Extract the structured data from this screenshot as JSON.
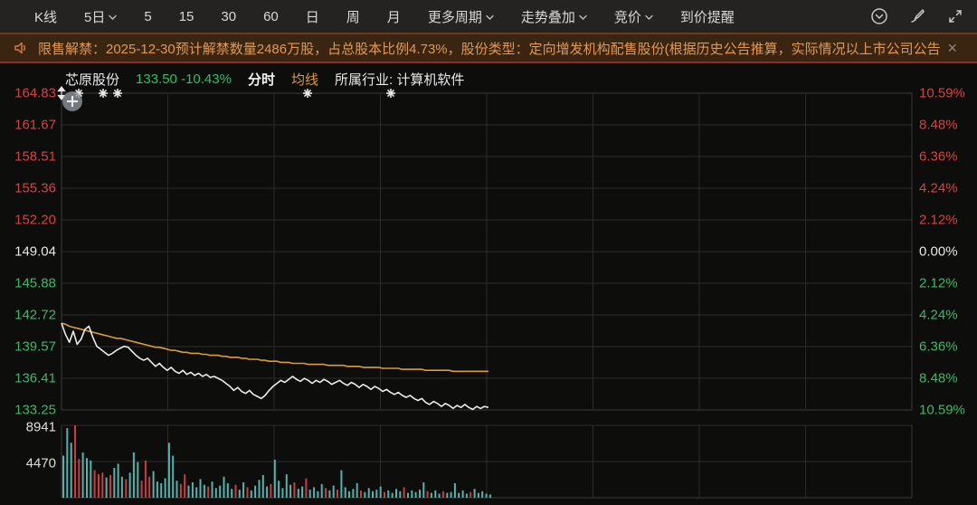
{
  "colors": {
    "up_red": "#d64141",
    "down_green": "#3cb768",
    "neutral_white": "#e6e6e6",
    "price_line": "#ebebeb",
    "ma_line": "#dd9c30",
    "vol_down_teal": "#4fb5ae",
    "vol_up_red": "#cf3b3b",
    "notice_text": "#e2994f",
    "grid": "#2c2c2c",
    "grid_border": "#3b3b3b"
  },
  "toolbar": {
    "items": [
      {
        "label": "K线",
        "caret": false
      },
      {
        "label": "5日",
        "caret": true
      },
      {
        "label": "5",
        "caret": false
      },
      {
        "label": "15",
        "caret": false
      },
      {
        "label": "30",
        "caret": false
      },
      {
        "label": "60",
        "caret": false
      },
      {
        "label": "日",
        "caret": false
      },
      {
        "label": "周",
        "caret": false
      },
      {
        "label": "月",
        "caret": false
      },
      {
        "label": "更多周期",
        "caret": true
      },
      {
        "label": "走势叠加",
        "caret": true
      },
      {
        "label": "竞价",
        "caret": true
      },
      {
        "label": "到价提醒",
        "caret": false
      }
    ],
    "right_icons": [
      "history-icon",
      "brush-icon",
      "fullscreen-icon"
    ]
  },
  "notice": {
    "icon": "speaker-icon",
    "text": "限售解禁：2025-12-30预计解禁数量2486万股，占总股本比例4.73%，股份类型：定向增发机构配售股份(根据历史公告推算，实际情况以上市公司公告...",
    "close_label": "×"
  },
  "header": {
    "stock_name": "芯原股份",
    "price": "133.50",
    "change_pct": "-10.43%",
    "view_label": "分时",
    "ma_label": "均线",
    "industry": "所属行业: 计算机软件"
  },
  "chart_data": {
    "type": "line",
    "title": "芯原股份 分时走势",
    "ylim": [
      133.25,
      164.83
    ],
    "prev_close": 149.04,
    "y_axis_price_labels": [
      "164.83",
      "161.67",
      "158.51",
      "155.36",
      "152.20",
      "149.04",
      "145.88",
      "142.72",
      "139.57",
      "136.41",
      "133.25"
    ],
    "y_axis_pct_labels": [
      "10.59%",
      "8.48%",
      "6.36%",
      "4.24%",
      "2.12%",
      "0.00%",
      "2.12%",
      "4.24%",
      "6.36%",
      "8.48%",
      "10.59%"
    ],
    "x_segments": 8,
    "x_data_fraction": 0.502,
    "legend": [
      {
        "name": "price",
        "color": "#ebebeb"
      },
      {
        "name": "avg",
        "color": "#dd9c30"
      }
    ],
    "series": [
      {
        "name": "price",
        "values": [
          141.9,
          140.8,
          140.0,
          141.1,
          139.8,
          140.3,
          141.3,
          141.6,
          140.5,
          139.6,
          139.3,
          139.0,
          138.7,
          138.9,
          139.2,
          139.4,
          139.6,
          139.5,
          139.1,
          138.7,
          138.4,
          138.2,
          138.4,
          138.0,
          137.6,
          137.9,
          137.5,
          137.2,
          137.5,
          137.1,
          136.9,
          137.2,
          136.8,
          137.0,
          136.7,
          136.9,
          136.6,
          136.8,
          136.5,
          136.6,
          136.4,
          136.2,
          135.9,
          135.6,
          135.2,
          135.5,
          135.1,
          134.9,
          135.2,
          134.8,
          134.6,
          134.4,
          134.7,
          135.2,
          135.6,
          135.9,
          136.2,
          136.0,
          136.3,
          136.6,
          136.3,
          136.1,
          136.4,
          136.2,
          135.9,
          136.2,
          136.0,
          136.3,
          136.1,
          135.8,
          136.0,
          136.2,
          135.9,
          135.7,
          136.0,
          135.8,
          135.5,
          135.8,
          135.6,
          135.3,
          135.6,
          135.4,
          135.1,
          135.3,
          135.0,
          134.8,
          135.0,
          134.7,
          134.5,
          134.7,
          134.4,
          134.2,
          134.4,
          134.0,
          133.8,
          134.1,
          133.9,
          133.6,
          133.9,
          133.7,
          133.4,
          133.7,
          133.5,
          133.8,
          133.5,
          133.3,
          133.6,
          133.4,
          133.6,
          133.5
        ]
      },
      {
        "name": "avg",
        "values": [
          141.9,
          141.8,
          141.6,
          141.5,
          141.4,
          141.3,
          141.2,
          141.1,
          141.0,
          140.9,
          140.8,
          140.7,
          140.6,
          140.5,
          140.4,
          140.4,
          140.3,
          140.2,
          140.1,
          140.0,
          139.9,
          139.8,
          139.7,
          139.6,
          139.5,
          139.5,
          139.4,
          139.3,
          139.2,
          139.2,
          139.1,
          139.0,
          139.0,
          138.9,
          138.9,
          138.9,
          138.8,
          138.8,
          138.7,
          138.7,
          138.7,
          138.6,
          138.6,
          138.5,
          138.5,
          138.5,
          138.4,
          138.4,
          138.3,
          138.3,
          138.3,
          138.2,
          138.2,
          138.1,
          138.1,
          138.1,
          138.0,
          138.0,
          138.0,
          137.9,
          137.9,
          137.9,
          137.9,
          137.8,
          137.8,
          137.8,
          137.8,
          137.8,
          137.7,
          137.7,
          137.7,
          137.7,
          137.7,
          137.6,
          137.6,
          137.6,
          137.6,
          137.5,
          137.5,
          137.5,
          137.5,
          137.5,
          137.4,
          137.4,
          137.4,
          137.4,
          137.4,
          137.3,
          137.3,
          137.3,
          137.3,
          137.3,
          137.3,
          137.2,
          137.2,
          137.2,
          137.2,
          137.2,
          137.2,
          137.2,
          137.1,
          137.1,
          137.1,
          137.1,
          137.1,
          137.1,
          137.1,
          137.1,
          137.1,
          137.1
        ]
      }
    ],
    "volume": {
      "axis_labels": [
        "8941",
        "4470"
      ],
      "max": 8941,
      "values": [
        5200,
        8600,
        6800,
        8941,
        4800,
        5600,
        4900,
        4600,
        3400,
        2900,
        3100,
        2500,
        2800,
        3700,
        4200,
        2600,
        2300,
        3100,
        5600,
        4400,
        2100,
        4600,
        2600,
        3300,
        2000,
        1800,
        2400,
        6800,
        5200,
        2100,
        1700,
        2900,
        1500,
        1900,
        1300,
        2300,
        1600,
        1400,
        2000,
        1200,
        1500,
        2600,
        1800,
        1100,
        1600,
        1000,
        1900,
        1300,
        900,
        1500,
        2200,
        2800,
        1400,
        1700,
        4700,
        2100,
        1200,
        2900,
        1600,
        1900,
        1100,
        1400,
        2400,
        1000,
        1300,
        800,
        1700,
        1200,
        900,
        1500,
        1000,
        3400,
        1300,
        800,
        1100,
        1800,
        900,
        700,
        1200,
        800,
        1000,
        1400,
        700,
        900,
        600,
        1100,
        800,
        1300,
        600,
        900,
        700,
        1000,
        1900,
        800,
        600,
        900,
        500,
        800,
        600,
        700,
        1800,
        600,
        900,
        500,
        700,
        1100,
        600,
        800,
        500,
        400
      ],
      "dirs": "ddduuddduuududdduddduuudddddd duudddddudddddduddudddddudddddudduddddudduddddduddddduddddudddddudddudddddduddd"
    },
    "event_markers_x": [
      87,
      114,
      130,
      340,
      432
    ]
  }
}
